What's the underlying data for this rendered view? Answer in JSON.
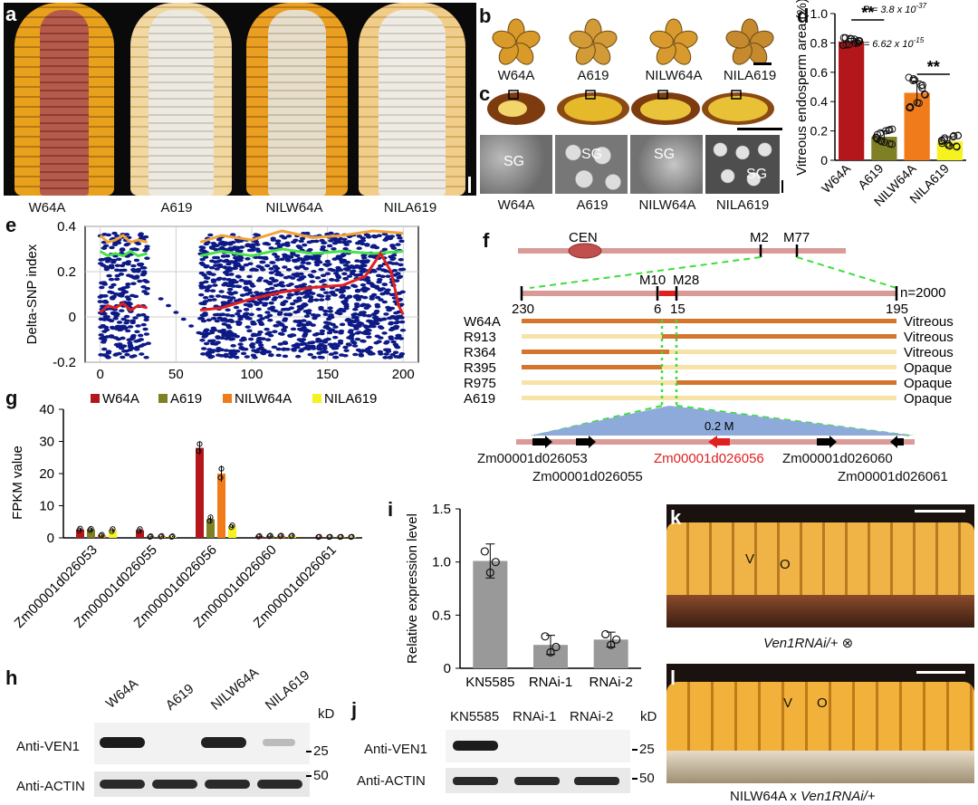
{
  "panels": {
    "a": {
      "label": "a",
      "genotypes": [
        "W64A",
        "A619",
        "NILW64A",
        "NILA619"
      ]
    },
    "b": {
      "label": "b",
      "genotypes": [
        "W64A",
        "A619",
        "NILW64A",
        "NILA619"
      ]
    },
    "c": {
      "label": "c",
      "genotypes": [
        "W64A",
        "A619",
        "NILW64A",
        "NILA619"
      ],
      "sg_label": "SG"
    },
    "d": {
      "label": "d"
    },
    "e": {
      "label": "e"
    },
    "f": {
      "label": "f",
      "cen": "CEN",
      "markers_top": [
        "M2",
        "M77"
      ],
      "markers_mid": [
        "M10",
        "M28"
      ],
      "counts": [
        "230",
        "6",
        "15",
        "195"
      ],
      "n": "n=2000",
      "lines": [
        {
          "name": "W64A",
          "phenotype": "Vitreous"
        },
        {
          "name": "R913",
          "phenotype": "Vitreous"
        },
        {
          "name": "R364",
          "phenotype": "Vitreous"
        },
        {
          "name": "R395",
          "phenotype": "Opaque"
        },
        {
          "name": "R975",
          "phenotype": "Opaque"
        },
        {
          "name": "A619",
          "phenotype": "Opaque"
        }
      ],
      "interval": "0.2 M",
      "genes": [
        "Zm00001d026053",
        "Zm00001d026055",
        "Zm00001d026056",
        "Zm00001d026060",
        "Zm00001d026061"
      ]
    },
    "g": {
      "label": "g"
    },
    "h": {
      "label": "h",
      "lanes": [
        "W64A",
        "A619",
        "NILW64A",
        "NILA619"
      ],
      "rows": [
        "Anti-VEN1",
        "Anti-ACTIN"
      ],
      "kd": "kD",
      "markers": [
        "25",
        "50"
      ]
    },
    "i": {
      "label": "i"
    },
    "j": {
      "label": "j",
      "lanes": [
        "KN5585",
        "RNAi-1",
        "RNAi-2"
      ],
      "rows": [
        "Anti-VEN1",
        "Anti-ACTIN"
      ],
      "kd": "kD",
      "markers": [
        "25",
        "50"
      ]
    },
    "k": {
      "label": "k",
      "v": "V",
      "o": "O",
      "caption": "Ven1RNAi/+",
      "caption_symbol": "⊗"
    },
    "l": {
      "label": "l",
      "v": "V",
      "o": "O",
      "caption_prefix": "NILW64A x ",
      "caption_italic": "Ven1RNAi/+"
    }
  },
  "chart_data": [
    {
      "id": "d",
      "type": "bar",
      "categories": [
        "W64A",
        "A619",
        "NILW64A",
        "NILA619"
      ],
      "values": [
        0.81,
        0.16,
        0.46,
        0.13
      ],
      "errors": [
        0.02,
        0.04,
        0.08,
        0.03
      ],
      "colors": [
        "#b3171b",
        "#7f7f25",
        "#f07b1a",
        "#f6f121"
      ],
      "ylabel": "Vitreous endosperm area (%)",
      "ylim": [
        0,
        1.0
      ],
      "yticks": [
        "0",
        "0.2",
        "0.4",
        "0.6",
        "0.8",
        "1.0"
      ],
      "annotations": [
        {
          "text": "P = 3.8 x 10",
          "exp": "-37",
          "stars": "**",
          "between": [
            0,
            1
          ]
        },
        {
          "text": "P = 6.62 x 10",
          "exp": "-15",
          "stars": "**",
          "between": [
            2,
            3
          ]
        }
      ]
    },
    {
      "id": "e",
      "type": "scatter",
      "ylabel": "Delta-SNP index",
      "xlim": [
        -10,
        210
      ],
      "ylim": [
        -0.2,
        0.4
      ],
      "xticks": [
        "0",
        "50",
        "100",
        "150",
        "200"
      ],
      "yticks": [
        "-0.2",
        "0",
        "0.2",
        "0.4"
      ],
      "grid": true
    },
    {
      "id": "g",
      "type": "bar",
      "categories": [
        "Zm00001d026053",
        "Zm00001d026055",
        "Zm00001d026056",
        "Zm00001d026060",
        "Zm00001d026061"
      ],
      "ylabel": "FPKM value",
      "ylim": [
        0,
        40
      ],
      "yticks": [
        "0",
        "10",
        "20",
        "30",
        "40"
      ],
      "series": [
        {
          "name": "W64A",
          "color": "#b3171b",
          "values": [
            2.6,
            2.4,
            28.0,
            0.5,
            0.3
          ],
          "errors": [
            0.5,
            0.6,
            2.0,
            0.2,
            0.1
          ]
        },
        {
          "name": "A619",
          "color": "#7f7f25",
          "values": [
            2.6,
            0.4,
            5.8,
            0.6,
            0.3
          ],
          "errors": [
            0.4,
            0.2,
            1.0,
            0.2,
            0.1
          ]
        },
        {
          "name": "NILW64A",
          "color": "#f07b1a",
          "values": [
            0.8,
            0.5,
            20.0,
            0.6,
            0.3
          ],
          "errors": [
            0.3,
            0.2,
            2.5,
            0.2,
            0.1
          ]
        },
        {
          "name": "NILA619",
          "color": "#f6f121",
          "values": [
            2.4,
            0.4,
            3.6,
            0.6,
            0.3
          ],
          "errors": [
            0.6,
            0.2,
            0.5,
            0.2,
            0.1
          ]
        }
      ]
    },
    {
      "id": "i",
      "type": "bar",
      "categories": [
        "KN5585",
        "RNAi-1",
        "RNAi-2"
      ],
      "values": [
        1.01,
        0.22,
        0.27
      ],
      "errors": [
        0.16,
        0.09,
        0.07
      ],
      "points": [
        [
          1.1,
          0.9,
          1.0
        ],
        [
          0.3,
          0.15,
          0.2
        ],
        [
          0.32,
          0.22,
          0.27
        ]
      ],
      "color": "#999999",
      "ylabel": "Relative expression level",
      "ylim": [
        0,
        1.5
      ],
      "yticks": [
        "0",
        "0.5",
        "1.0",
        "1.5"
      ]
    }
  ]
}
